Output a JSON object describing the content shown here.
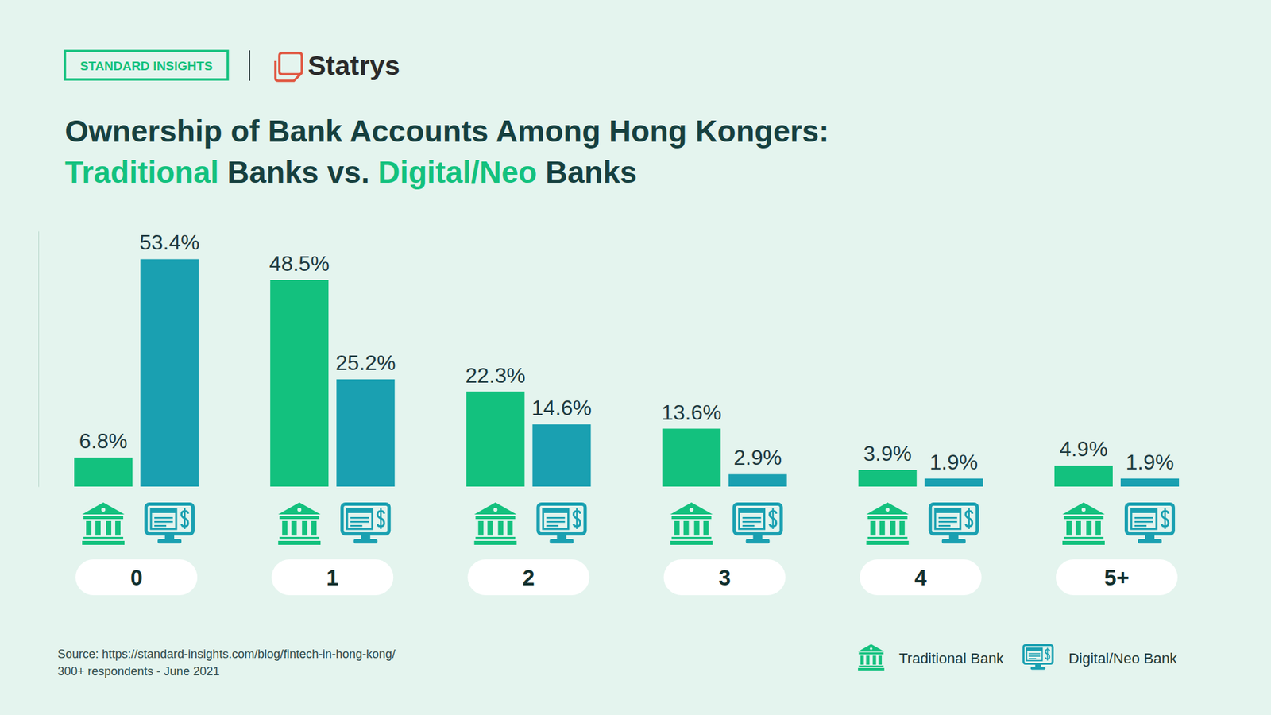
{
  "header": {
    "badge": "STANDARD INSIGHTS",
    "brand": "Statrys"
  },
  "chart_data": {
    "type": "bar",
    "title": "Ownership of Bank Accounts Among Hong Kongers: Traditional Banks vs. Digital/Neo Banks",
    "categories": [
      "0",
      "1",
      "2",
      "3",
      "4",
      "5+"
    ],
    "series": [
      {
        "name": "Traditional Bank",
        "color": "#13c17e",
        "values": [
          6.8,
          48.5,
          22.3,
          13.6,
          3.9,
          4.9
        ],
        "value_labels": [
          "6.8%",
          "48.5%",
          "22.3%",
          "13.6%",
          "3.9%",
          "4.9%"
        ]
      },
      {
        "name": "Digital/Neo Bank",
        "color": "#1aa0b1",
        "values": [
          53.4,
          25.2,
          14.6,
          2.9,
          1.9,
          1.9
        ],
        "value_labels": [
          "53.4%",
          "25.2%",
          "14.6%",
          "2.9%",
          "1.9%",
          "1.9%"
        ]
      }
    ],
    "ylim": [
      0,
      60
    ],
    "yticks": [],
    "grid": false,
    "data_labels": true,
    "tick_labels": "x",
    "legend": "bottom-right",
    "annotations": [
      "Source: https://standard-insights.com/blog/fintech-in-hong-kong/",
      "300+ respondents - June 2021"
    ]
  }
}
